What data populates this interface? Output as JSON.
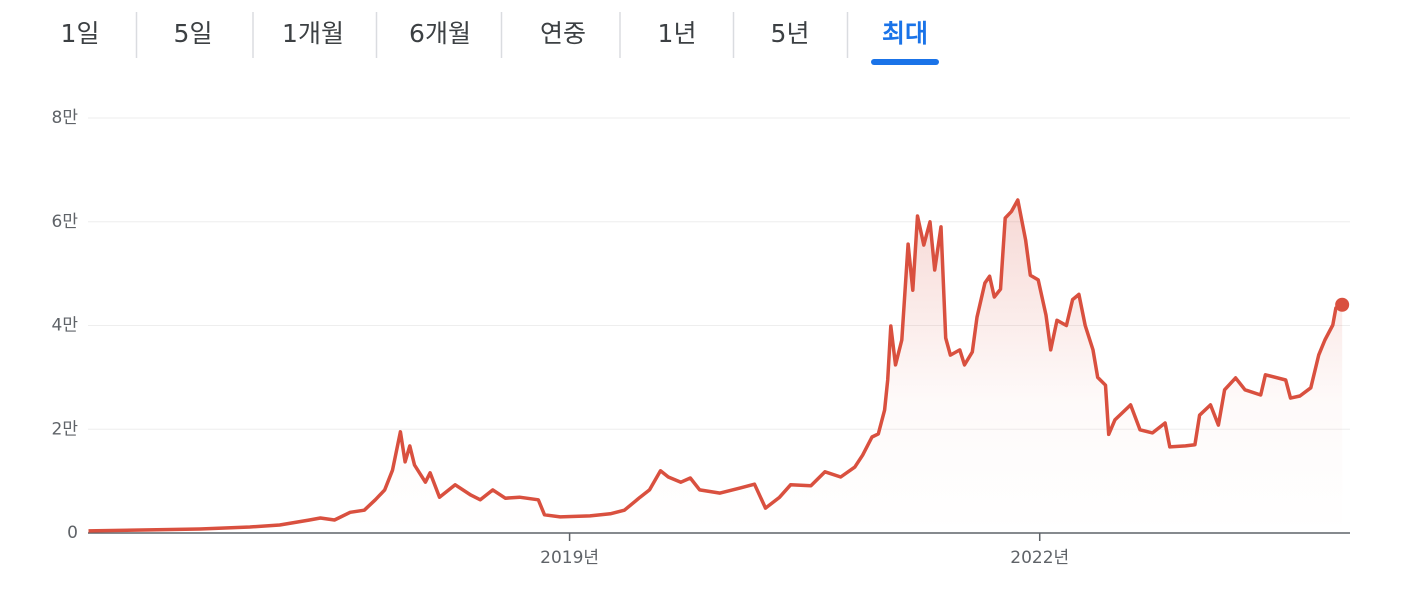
{
  "tabs": [
    "1일",
    "5일",
    "1개월",
    "6개월",
    "연중",
    "1년",
    "5년",
    "최대"
  ],
  "selected_tab": 7,
  "chart_data": {
    "type": "line",
    "color": "#d9503f",
    "x": [
      2015.93,
      2016.32,
      2016.64,
      2016.96,
      2017.15,
      2017.34,
      2017.41,
      2017.5,
      2017.6,
      2017.69,
      2017.76,
      2017.82,
      2017.87,
      2017.92,
      2017.95,
      2017.98,
      2018.01,
      2018.08,
      2018.11,
      2018.17,
      2018.27,
      2018.37,
      2018.43,
      2018.51,
      2018.59,
      2018.68,
      2018.8,
      2018.84,
      2018.94,
      2019.13,
      2019.26,
      2019.35,
      2019.45,
      2019.51,
      2019.58,
      2019.63,
      2019.71,
      2019.77,
      2019.83,
      2019.96,
      2020.09,
      2020.18,
      2020.25,
      2020.34,
      2020.41,
      2020.54,
      2020.63,
      2020.73,
      2020.82,
      2020.87,
      2020.93,
      2020.97,
      2021.01,
      2021.03,
      2021.05,
      2021.08,
      2021.12,
      2021.16,
      2021.19,
      2021.22,
      2021.26,
      2021.3,
      2021.33,
      2021.37,
      2021.4,
      2021.43,
      2021.49,
      2021.52,
      2021.57,
      2021.6,
      2021.65,
      2021.68,
      2021.71,
      2021.75,
      2021.78,
      2021.82,
      2021.86,
      2021.91,
      2021.94,
      2021.99,
      2022.04,
      2022.07,
      2022.11,
      2022.17,
      2022.21,
      2022.25,
      2022.29,
      2022.34,
      2022.37,
      2022.42,
      2022.44,
      2022.48,
      2022.58,
      2022.64,
      2022.72,
      2022.8,
      2022.83,
      2022.93,
      2022.99,
      2023.02,
      2023.09,
      2023.14,
      2023.18,
      2023.25,
      2023.31,
      2023.41,
      2023.44,
      2023.57,
      2023.6,
      2023.66,
      2023.73,
      2023.78,
      2023.82,
      2023.87,
      2023.89,
      2023.93
    ],
    "values": [
      400,
      600,
      770,
      1150,
      1540,
      2500,
      2900,
      2500,
      4000,
      4400,
      6400,
      8300,
      12100,
      19500,
      13700,
      16800,
      13100,
      9800,
      11600,
      6900,
      9300,
      7300,
      6400,
      8300,
      6700,
      6900,
      6400,
      3500,
      3100,
      3300,
      3700,
      4400,
      6900,
      8300,
      12000,
      10800,
      9800,
      10600,
      8300,
      7700,
      8700,
      9400,
      4800,
      6900,
      9300,
      9100,
      11800,
      10800,
      12700,
      15000,
      18500,
      19100,
      23700,
      29500,
      39900,
      32400,
      37200,
      55700,
      46800,
      61100,
      55500,
      60000,
      50700,
      59000,
      37600,
      34300,
      35300,
      32400,
      34900,
      41600,
      48200,
      49500,
      45500,
      47000,
      60700,
      62000,
      64200,
      56500,
      49700,
      48800,
      42000,
      35300,
      41000,
      40000,
      45000,
      46000,
      40000,
      35300,
      30000,
      28500,
      19000,
      21800,
      24700,
      19900,
      19300,
      21200,
      16600,
      16800,
      17000,
      22700,
      24700,
      20800,
      27600,
      29900,
      27600,
      26600,
      30500,
      29500,
      26000,
      26400,
      28000,
      34300,
      37200,
      40100,
      43400,
      44000
    ],
    "xlim": [
      2015.78,
      2023.98
    ],
    "xticks": [
      {
        "value": 2019,
        "label": "2019년"
      },
      {
        "value": 2022,
        "label": "2022년"
      }
    ],
    "ylim": [
      0,
      80000
    ],
    "yticks": [
      0,
      {
        "value": 20000,
        "label": "2만"
      },
      {
        "value": 40000,
        "label": "4만"
      },
      {
        "value": 60000,
        "label": "6만"
      },
      {
        "value": 80000,
        "label": "8만"
      }
    ],
    "grid": true
  }
}
